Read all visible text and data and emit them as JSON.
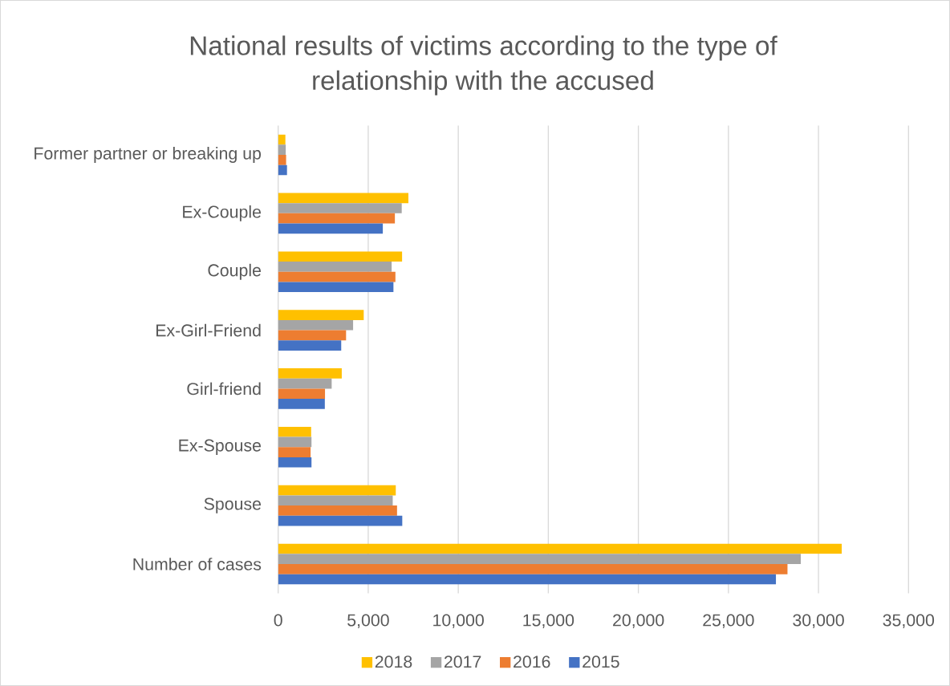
{
  "chart_data": {
    "type": "bar",
    "orientation": "horizontal",
    "title": "National results of victims according to the type of relationship with the accused",
    "categories": [
      "Former partner or breaking up",
      "Ex-Couple",
      "Couple",
      "Ex-Girl-Friend",
      "Girl-friend",
      "Ex-Spouse",
      "Spouse",
      "Number of cases"
    ],
    "series": [
      {
        "name": "2018",
        "color": "#ffc000",
        "values": [
          400,
          7230,
          6880,
          4750,
          3530,
          1830,
          6530,
          31300
        ]
      },
      {
        "name": "2017",
        "color": "#a5a5a5",
        "values": [
          420,
          6860,
          6300,
          4160,
          2970,
          1850,
          6360,
          29020
        ]
      },
      {
        "name": "2016",
        "color": "#ed7d31",
        "values": [
          440,
          6480,
          6510,
          3770,
          2600,
          1800,
          6600,
          28280
        ]
      },
      {
        "name": "2015",
        "color": "#4472c4",
        "values": [
          490,
          5810,
          6400,
          3500,
          2590,
          1850,
          6890,
          27640
        ]
      }
    ],
    "xlim": [
      0,
      35000
    ],
    "xticks": [
      0,
      {
        "value": 5000,
        "label": "5,000"
      },
      {
        "value": 10000,
        "label": "10,000"
      },
      {
        "value": 15000,
        "label": "15,000"
      },
      {
        "value": 20000,
        "label": "20,000"
      },
      {
        "value": 25000,
        "label": "25,000"
      },
      {
        "value": 30000,
        "label": "30,000"
      },
      {
        "value": 35000,
        "label": "35,000"
      }
    ],
    "grid": "x",
    "legend": "bottom"
  }
}
